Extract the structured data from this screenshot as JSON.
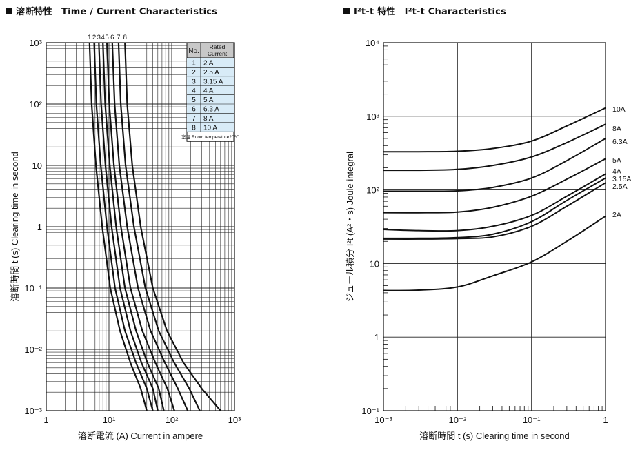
{
  "headers": {
    "left": "溶断特性　Time / Current Characteristics",
    "right": "I²t-t 特性　I²t-t Characteristics"
  },
  "chart_data": [
    {
      "type": "line",
      "title": "溶断特性　Time / Current Characteristics",
      "xlabel": "溶断電流 (A)  Current in ampere",
      "ylabel": "溶断時間 t (s)  Clearing time in second",
      "x_scale": "log",
      "y_scale": "log",
      "xlim": [
        1,
        1000
      ],
      "ylim": [
        0.001,
        1000
      ],
      "grid": true,
      "x_ticks": [
        "1",
        "10¹",
        "10²",
        "10³"
      ],
      "y_ticks": [
        "10⁻³",
        "10⁻²",
        "10⁻¹",
        "1",
        "10",
        "10²",
        "10³"
      ],
      "top_labels": [
        "1",
        "2",
        "3",
        "4",
        "5",
        "6",
        "7",
        "8"
      ],
      "legend_table": {
        "header_no": "No.",
        "header_rating": "Rated Current",
        "rows": [
          {
            "no": "1",
            "rating": "2 A"
          },
          {
            "no": "2",
            "rating": "2.5 A"
          },
          {
            "no": "3",
            "rating": "3.15 A"
          },
          {
            "no": "4",
            "rating": "4 A"
          },
          {
            "no": "5",
            "rating": "5 A"
          },
          {
            "no": "6",
            "rating": "6.3 A"
          },
          {
            "no": "7",
            "rating": "8 A"
          },
          {
            "no": "8",
            "rating": "10 A"
          }
        ],
        "footnote": "室温 Room temperature20℃"
      },
      "series": [
        {
          "name": "1",
          "x": [
            4.9,
            5.3,
            6.2,
            7.8,
            10.5,
            15,
            22,
            32,
            40
          ],
          "y": [
            1000,
            100,
            10,
            1,
            0.1,
            0.02,
            0.006,
            0.0023,
            0.001
          ]
        },
        {
          "name": "2",
          "x": [
            5.8,
            6.3,
            7.4,
            9.3,
            12.5,
            18,
            27,
            40,
            50
          ],
          "y": [
            1000,
            100,
            10,
            1,
            0.1,
            0.02,
            0.006,
            0.0023,
            0.001
          ]
        },
        {
          "name": "3",
          "x": [
            6.9,
            7.5,
            8.8,
            11,
            15,
            22,
            33,
            50,
            60
          ],
          "y": [
            1000,
            100,
            10,
            1,
            0.1,
            0.02,
            0.006,
            0.0023,
            0.001
          ]
        },
        {
          "name": "4",
          "x": [
            8.0,
            8.7,
            10.3,
            13,
            18,
            27,
            41,
            62,
            75
          ],
          "y": [
            1000,
            100,
            10,
            1,
            0.1,
            0.02,
            0.006,
            0.0023,
            0.001
          ]
        },
        {
          "name": "5",
          "x": [
            9.3,
            10.1,
            12,
            15.5,
            22,
            34,
            55,
            85,
            110
          ],
          "y": [
            1000,
            100,
            10,
            1,
            0.1,
            0.02,
            0.006,
            0.0023,
            0.001
          ]
        },
        {
          "name": "6",
          "x": [
            11.3,
            12.3,
            14.6,
            19.5,
            29,
            46,
            78,
            125,
            180
          ],
          "y": [
            1000,
            100,
            10,
            1,
            0.1,
            0.02,
            0.006,
            0.0023,
            0.001
          ]
        },
        {
          "name": "7",
          "x": [
            14.2,
            15.4,
            18.4,
            25,
            38,
            62,
            110,
            190,
            280
          ],
          "y": [
            1000,
            100,
            10,
            1,
            0.1,
            0.02,
            0.006,
            0.0023,
            0.001
          ]
        },
        {
          "name": "8",
          "x": [
            18,
            19.5,
            23.5,
            32,
            50,
            84,
            155,
            300,
            600
          ],
          "y": [
            1000,
            100,
            10,
            1,
            0.1,
            0.02,
            0.006,
            0.0023,
            0.001
          ]
        }
      ]
    },
    {
      "type": "line",
      "title": "I²t-t 特性　I²t-t Characteristics",
      "xlabel": "溶断時間 t (s)  Clearing time in second",
      "ylabel": "ジュール積分 I²t (A²・s) Joule integral",
      "x_scale": "log",
      "y_scale": "log",
      "xlim": [
        0.001,
        1
      ],
      "ylim": [
        0.1,
        10000
      ],
      "grid": true,
      "x_ticks": [
        "10⁻³",
        "10⁻²",
        "10⁻¹",
        "1"
      ],
      "y_ticks": [
        "10⁻¹",
        "1",
        "10",
        "10²",
        "10³",
        "10⁴"
      ],
      "series": [
        {
          "name": "2A",
          "x": [
            0.001,
            0.003,
            0.01,
            0.03,
            0.1,
            0.3,
            1
          ],
          "y": [
            4.3,
            4.35,
            4.8,
            6.8,
            10.5,
            20,
            44
          ]
        },
        {
          "name": "2.5A",
          "x": [
            0.001,
            0.003,
            0.01,
            0.03,
            0.1,
            0.3,
            1
          ],
          "y": [
            21.5,
            21.5,
            21.8,
            23,
            32,
            60,
            125
          ]
        },
        {
          "name": "3.15A",
          "x": [
            0.001,
            0.003,
            0.01,
            0.03,
            0.1,
            0.3,
            1
          ],
          "y": [
            22,
            22,
            22.5,
            25,
            37,
            72,
            145
          ]
        },
        {
          "name": "4A",
          "x": [
            0.001,
            0.003,
            0.01,
            0.03,
            0.1,
            0.3,
            1
          ],
          "y": [
            29,
            28,
            28,
            32,
            45,
            82,
            165
          ]
        },
        {
          "name": "5A",
          "x": [
            0.001,
            0.003,
            0.01,
            0.03,
            0.1,
            0.3,
            1
          ],
          "y": [
            49,
            49,
            50,
            58,
            82,
            140,
            265
          ]
        },
        {
          "name": "6.3A",
          "x": [
            0.001,
            0.003,
            0.01,
            0.03,
            0.1,
            0.3,
            1
          ],
          "y": [
            96,
            96,
            97,
            108,
            145,
            250,
            500
          ]
        },
        {
          "name": "8A",
          "x": [
            0.001,
            0.003,
            0.01,
            0.03,
            0.1,
            0.3,
            1
          ],
          "y": [
            185,
            185,
            190,
            215,
            280,
            440,
            780
          ]
        },
        {
          "name": "10A",
          "x": [
            0.001,
            0.003,
            0.01,
            0.03,
            0.1,
            0.3,
            1
          ],
          "y": [
            330,
            330,
            335,
            365,
            460,
            740,
            1300
          ]
        }
      ]
    }
  ]
}
